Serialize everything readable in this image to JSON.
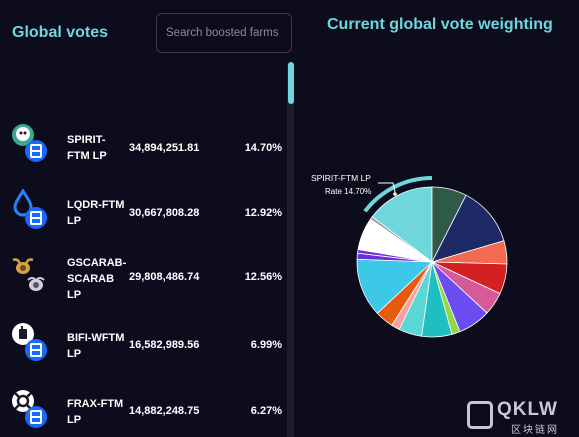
{
  "left_panel": {
    "title": "Global votes",
    "search": {
      "placeholder": "Search boosted farms",
      "value": ""
    },
    "farms": [
      {
        "name": "SPIRIT-FTM LP",
        "votes": "34,894,251.81",
        "percent": "14.70%",
        "icon": "spirit-ftm-icon"
      },
      {
        "name": "LQDR-FTM LP",
        "votes": "30,667,808.28",
        "percent": "12.92%",
        "icon": "lqdr-ftm-icon"
      },
      {
        "name": "GSCARAB-SCARAB LP",
        "votes": "29,808,486.74",
        "percent": "12.56%",
        "icon": "gscarab-scarab-icon"
      },
      {
        "name": "BIFI-WFTM LP",
        "votes": "16,582,989.56",
        "percent": "6.99%",
        "icon": "bifi-wftm-icon"
      },
      {
        "name": "FRAX-FTM LP",
        "votes": "14,882,248.75",
        "percent": "6.27%",
        "icon": "frax-ftm-icon"
      }
    ]
  },
  "right_panel": {
    "title": "Current global vote weighting",
    "tooltip": {
      "name": "SPIRIT-FTM LP",
      "rate": "Rate 14.70%"
    }
  },
  "watermark": {
    "text": "QKLW",
    "sub": "区块链网"
  },
  "colors": {
    "accent": "#6fd7dc",
    "background": "#0c0c1c"
  },
  "chart_data": {
    "type": "pie",
    "title": "Current global vote weighting",
    "highlighted": "SPIRIT-FTM LP",
    "slices": [
      {
        "label": "SPIRIT-FTM LP",
        "value": 14.7,
        "color": "#6fd7dc"
      },
      {
        "label": "",
        "value": 7.5,
        "color": "#2f5a48"
      },
      {
        "label": "LQDR-FTM LP",
        "value": 12.92,
        "color": "#1d2a66"
      },
      {
        "label": "",
        "value": 5.0,
        "color": "#f26a4f"
      },
      {
        "label": "",
        "value": 6.5,
        "color": "#d42020"
      },
      {
        "label": "",
        "value": 5.0,
        "color": "#d65a9a"
      },
      {
        "label": "",
        "value": 7.0,
        "color": "#6a4cf0"
      },
      {
        "label": "",
        "value": 1.8,
        "color": "#8ed84a"
      },
      {
        "label": "",
        "value": 6.5,
        "color": "#1fbfbf"
      },
      {
        "label": "",
        "value": 5.0,
        "color": "#5ad6d6"
      },
      {
        "label": "",
        "value": 1.8,
        "color": "#f7a0a0"
      },
      {
        "label": "",
        "value": 4.0,
        "color": "#e85a10"
      },
      {
        "label": "GSCARAB-SCARAB LP",
        "value": 12.56,
        "color": "#3ec8e8"
      },
      {
        "label": "",
        "value": 1.3,
        "color": "#6a2fd8"
      },
      {
        "label": "",
        "value": 0.8,
        "color": "#6a2fd8"
      },
      {
        "label": "",
        "value": 6.99,
        "color": "#ffffff"
      },
      {
        "label": "",
        "value": 0.63,
        "color": "#9a9aa8"
      }
    ]
  }
}
